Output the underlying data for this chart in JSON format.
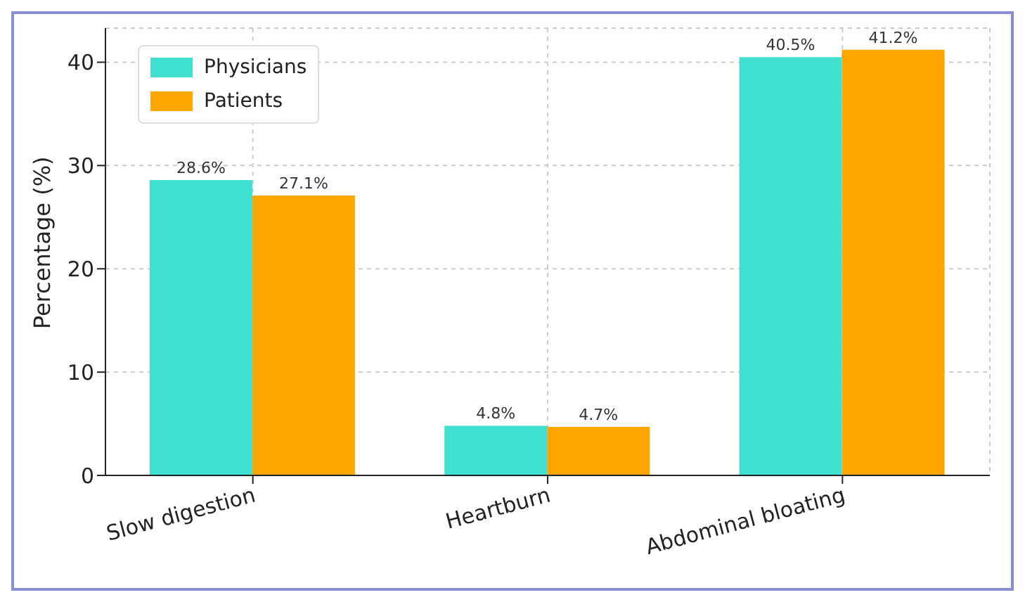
{
  "chart_data": {
    "type": "bar",
    "ylabel": "Percentage (%)",
    "categories": [
      "Slow digestion",
      "Heartburn",
      "Abdominal bloating"
    ],
    "series": [
      {
        "name": "Physicians",
        "color": "#40e0d0",
        "values": [
          28.6,
          4.8,
          40.5
        ],
        "value_labels": [
          "28.6%",
          "4.8%",
          "40.5%"
        ]
      },
      {
        "name": "Patients",
        "color": "#ffa500",
        "values": [
          27.1,
          4.7,
          41.2
        ],
        "value_labels": [
          "27.1%",
          "4.7%",
          "41.2%"
        ]
      }
    ],
    "ylim": [
      0,
      43.3
    ],
    "yticks": [
      0,
      10,
      20,
      30,
      40
    ],
    "grid": true,
    "legend": "top left"
  }
}
